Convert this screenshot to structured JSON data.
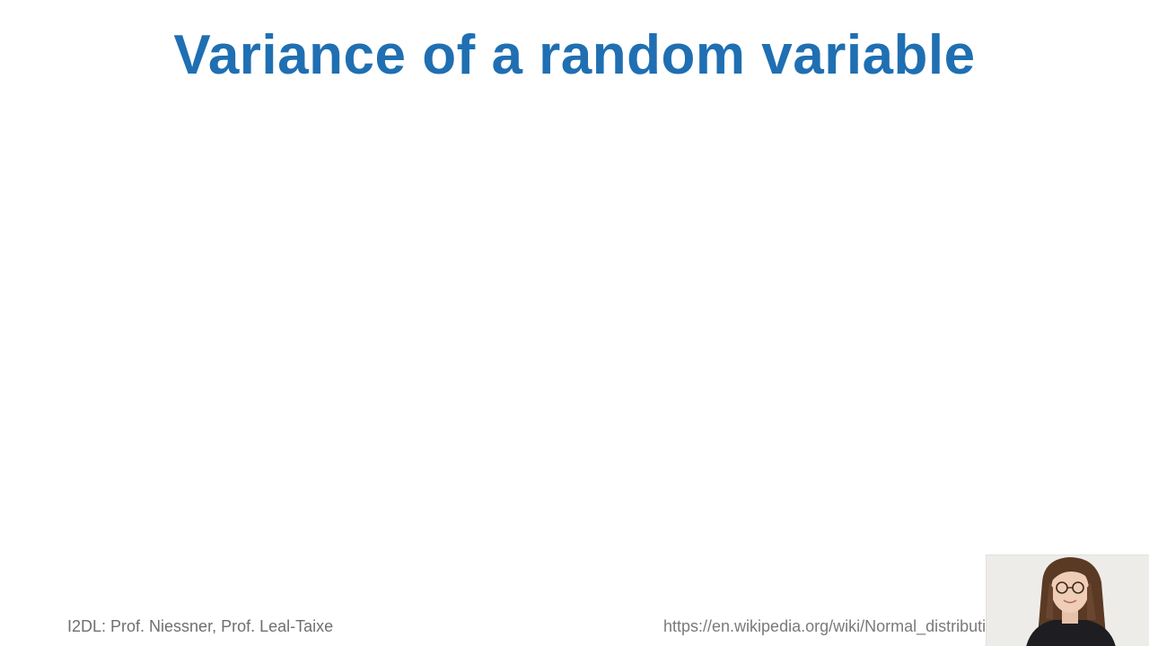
{
  "slide": {
    "title": "Variance of a random variable",
    "footer_left": "I2DL: Prof. Niessner, Prof. Leal-Taixe",
    "footer_right": "https://en.wikipedia.org/wiki/Normal_distribution"
  },
  "colors": {
    "title": "#1f6fb2",
    "footer_text": "#6f6f6f",
    "background": "#ffffff"
  },
  "webcam": {
    "icon": "presenter-video"
  }
}
